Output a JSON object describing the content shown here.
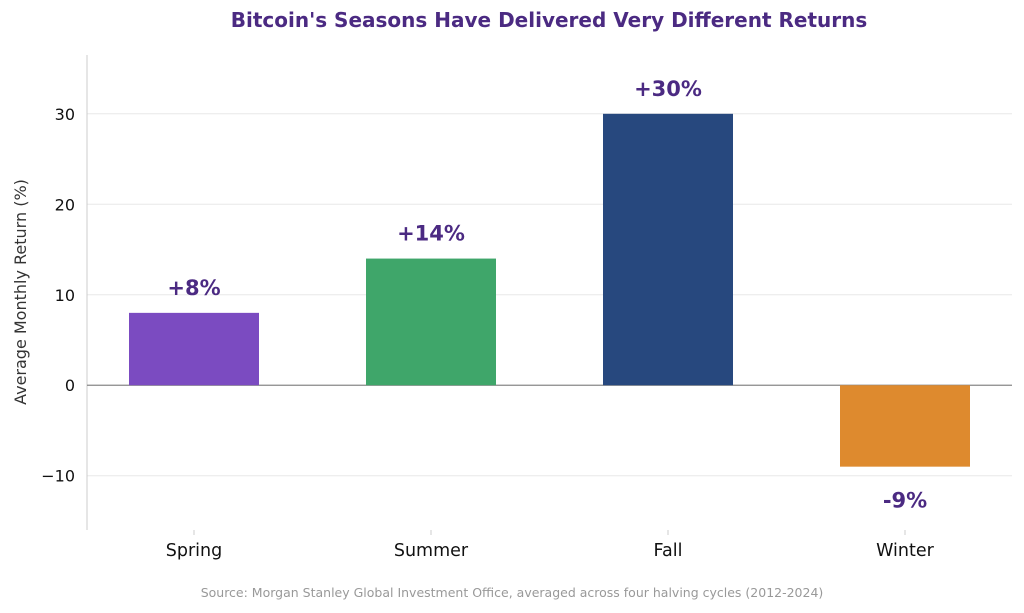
{
  "chart_data": {
    "type": "bar",
    "title": "Bitcoin's Seasons Have Delivered Very Different Returns",
    "xlabel": "",
    "ylabel": "Average Monthly Return (%)",
    "categories": [
      "Spring",
      "Summer",
      "Fall",
      "Winter"
    ],
    "values": [
      8,
      14,
      30,
      -9
    ],
    "data_labels": [
      "+8%",
      "+14%",
      "+30%",
      "-9%"
    ],
    "bar_colors": [
      "#7b4bc1",
      "#3fa66a",
      "#27487e",
      "#de8a2e"
    ],
    "ylim": [
      -16,
      36.5
    ],
    "yticks": [
      -10,
      0,
      10,
      20,
      30
    ],
    "ytick_labels": [
      "−10",
      "0",
      "10",
      "20",
      "30"
    ],
    "grid": true,
    "legend": "none",
    "source": "Source: Morgan Stanley Global Investment Office, averaged across four halving cycles (2012-2024)"
  },
  "colors": {
    "title": "#4b2a82",
    "data_label": "#4b2a82",
    "grid": "#e8e8e8",
    "zero_line": "#888888",
    "axis": "#cccccc"
  }
}
